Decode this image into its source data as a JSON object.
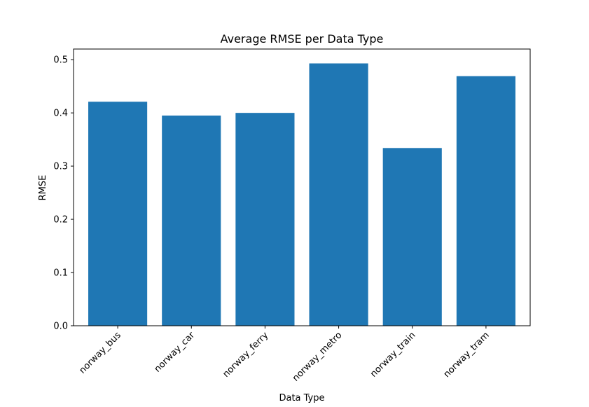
{
  "chart_data": {
    "type": "bar",
    "title": "Average RMSE per Data Type",
    "xlabel": "Data Type",
    "ylabel": "RMSE",
    "categories": [
      "norway_bus",
      "norway_car",
      "norway_ferry",
      "norway_metro",
      "norway_train",
      "norway_tram"
    ],
    "values": [
      0.421,
      0.395,
      0.4,
      0.493,
      0.334,
      0.469
    ],
    "ylim": [
      0,
      0.52
    ],
    "yticks": [
      0.0,
      0.1,
      0.2,
      0.3,
      0.4,
      0.5
    ],
    "ytick_labels": [
      "0.0",
      "0.1",
      "0.2",
      "0.3",
      "0.4",
      "0.5"
    ],
    "bar_color": "#1f77b4",
    "grid": false,
    "legend": "none"
  }
}
